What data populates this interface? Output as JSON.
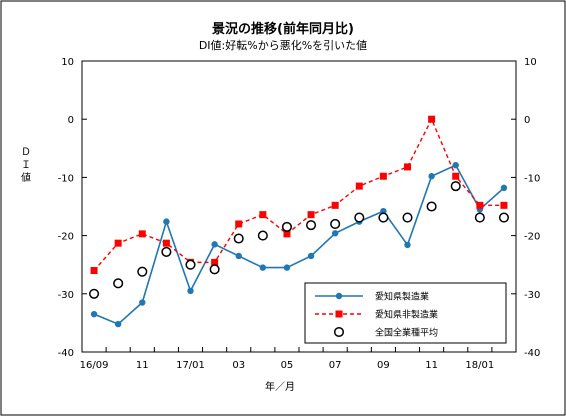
{
  "chart_data": {
    "type": "line",
    "title": "景況の推移(前年同月比)",
    "subtitle": "DI値:好転%から悪化%を引いた値",
    "xlabel": "年／月",
    "ylabel": "ＤＩ値",
    "ylim": [
      -40,
      10
    ],
    "yticks": [
      10,
      0,
      -10,
      -20,
      -30,
      -40
    ],
    "grid": false,
    "legend_position": "bottom-right",
    "x": [
      "16/09",
      "16/10",
      "16/11",
      "16/12",
      "17/01",
      "17/02",
      "17/03",
      "17/04",
      "17/05",
      "17/06",
      "17/07",
      "17/08",
      "17/09",
      "17/10",
      "17/11",
      "17/12",
      "18/01",
      "18/02"
    ],
    "xtick_labels": [
      "16/09",
      "",
      "11",
      "",
      "17/01",
      "",
      "03",
      "",
      "05",
      "",
      "07",
      "",
      "09",
      "",
      "11",
      "",
      "18/01",
      ""
    ],
    "series": [
      {
        "name": "愛知県製造業",
        "color": "#1f77b4",
        "style": "solid-dot",
        "values": [
          -33.5,
          -35.2,
          -31.5,
          -17.6,
          -29.5,
          -21.5,
          -23.5,
          -25.5,
          -25.5,
          -23.5,
          -19.6,
          -17.6,
          -15.8,
          -21.6,
          -9.8,
          -7.9,
          -15.5,
          -11.8
        ]
      },
      {
        "name": "愛知県非製造業",
        "color": "#ff0000",
        "style": "dashed-square",
        "values": [
          -26.0,
          -21.3,
          -19.7,
          -21.3,
          -24.6,
          -24.6,
          -18.0,
          -16.4,
          -19.7,
          -16.4,
          -14.8,
          -11.5,
          -9.8,
          -8.2,
          0.0,
          -9.8,
          -14.8,
          -14.8
        ]
      },
      {
        "name": "全国全業種平均",
        "color": "#000000",
        "style": "open-circle",
        "values": [
          -30.0,
          -28.2,
          -26.2,
          -22.8,
          -25.0,
          -25.8,
          -20.5,
          -20.0,
          -18.5,
          -18.2,
          -18.0,
          -16.9,
          -16.9,
          -16.9,
          -15.0,
          -11.5,
          -16.9,
          -16.9
        ]
      }
    ]
  }
}
